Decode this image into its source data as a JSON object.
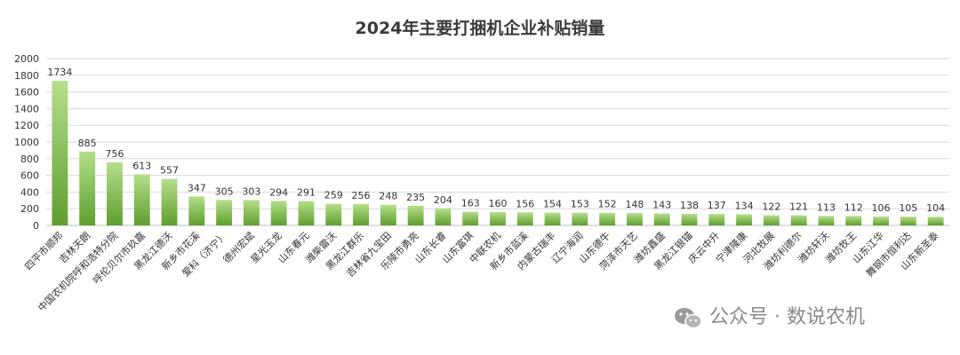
{
  "chart_data": {
    "type": "bar",
    "title": "2024年主要打捆机企业补贴销量",
    "categories": [
      "四平市顺邦",
      "吉林天朗",
      "中国农机院呼和浩特分院",
      "呼伦贝尔市玖嘉",
      "黑龙江德沃",
      "新乡市花溪",
      "爱科（济宁）",
      "德州宏斌",
      "星光玉龙",
      "山东春元",
      "潍柴雷沃",
      "黑龙江群乐",
      "吉林省九宝田",
      "乐陵市勇亮",
      "山东长睿",
      "山东富琪",
      "中联农机",
      "新乡市蓝溪",
      "内蒙古瑞丰",
      "辽宁海润",
      "山东德牛",
      "菏泽市天艺",
      "潍坊鑫盛",
      "黑龙江银锚",
      "庆云中升",
      "宁津隆康",
      "河北牧展",
      "潍坊利德尔",
      "潍坊轩沃",
      "潍坊牧王",
      "山东江华",
      "舞钢市恒利达",
      "山东新圣泰"
    ],
    "values": [
      1734,
      885,
      756,
      613,
      557,
      347,
      305,
      303,
      294,
      291,
      259,
      256,
      248,
      235,
      204,
      163,
      160,
      156,
      154,
      153,
      152,
      148,
      143,
      138,
      137,
      134,
      122,
      121,
      113,
      112,
      106,
      105,
      104
    ],
    "yticks": [
      0,
      200,
      400,
      600,
      800,
      1000,
      1200,
      1400,
      1600,
      1800,
      2000
    ],
    "ylim": [
      0,
      2000
    ],
    "grid": true,
    "legend": "none",
    "bar_color_top": "#b5df8a",
    "bar_color_bottom": "#5f9e2f"
  },
  "watermark": {
    "text": "公众号 · 数说农机",
    "icon": "wechat-icon"
  }
}
